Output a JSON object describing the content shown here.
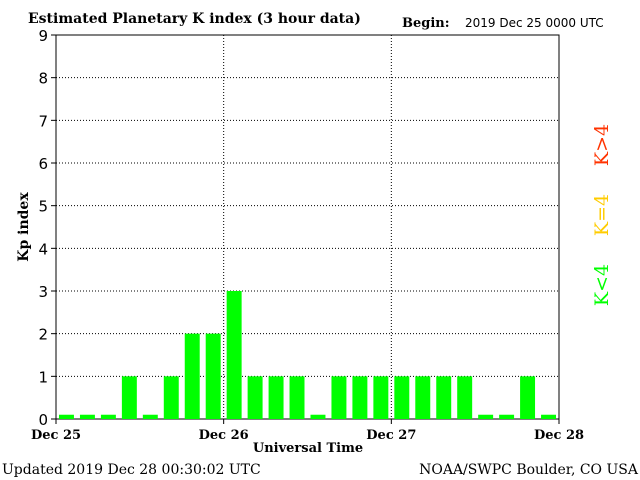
{
  "chart_data": {
    "type": "bar",
    "title": "Estimated Planetary K index (3 hour data)",
    "begin_label": "Begin:",
    "begin_value": "2019 Dec 25 0000 UTC",
    "xlabel": "Universal Time",
    "ylabel": "Kp index",
    "ylim": [
      0,
      9
    ],
    "y_ticks": [
      "0",
      "1",
      "2",
      "3",
      "4",
      "5",
      "6",
      "7",
      "8",
      "9"
    ],
    "x_ticks": [
      "Dec 25",
      "Dec 26",
      "Dec 27",
      "Dec 28"
    ],
    "grid": true,
    "values": [
      0.1,
      0.1,
      0.1,
      1,
      0.1,
      1,
      2,
      2,
      3,
      1,
      1,
      1,
      0.1,
      1,
      1,
      1,
      1,
      1,
      1,
      1,
      0.1,
      0.1,
      1,
      0.1
    ],
    "legend": [
      {
        "label": "K<4",
        "color": "#00ff00"
      },
      {
        "label": "K=4",
        "color": "#ffcc00"
      },
      {
        "label": "K>4",
        "color": "#ff3300"
      }
    ],
    "bar_color": "#00ff00"
  },
  "footer": {
    "updated": "Updated 2019 Dec 28 00:30:02 UTC",
    "source": "NOAA/SWPC Boulder, CO USA"
  }
}
